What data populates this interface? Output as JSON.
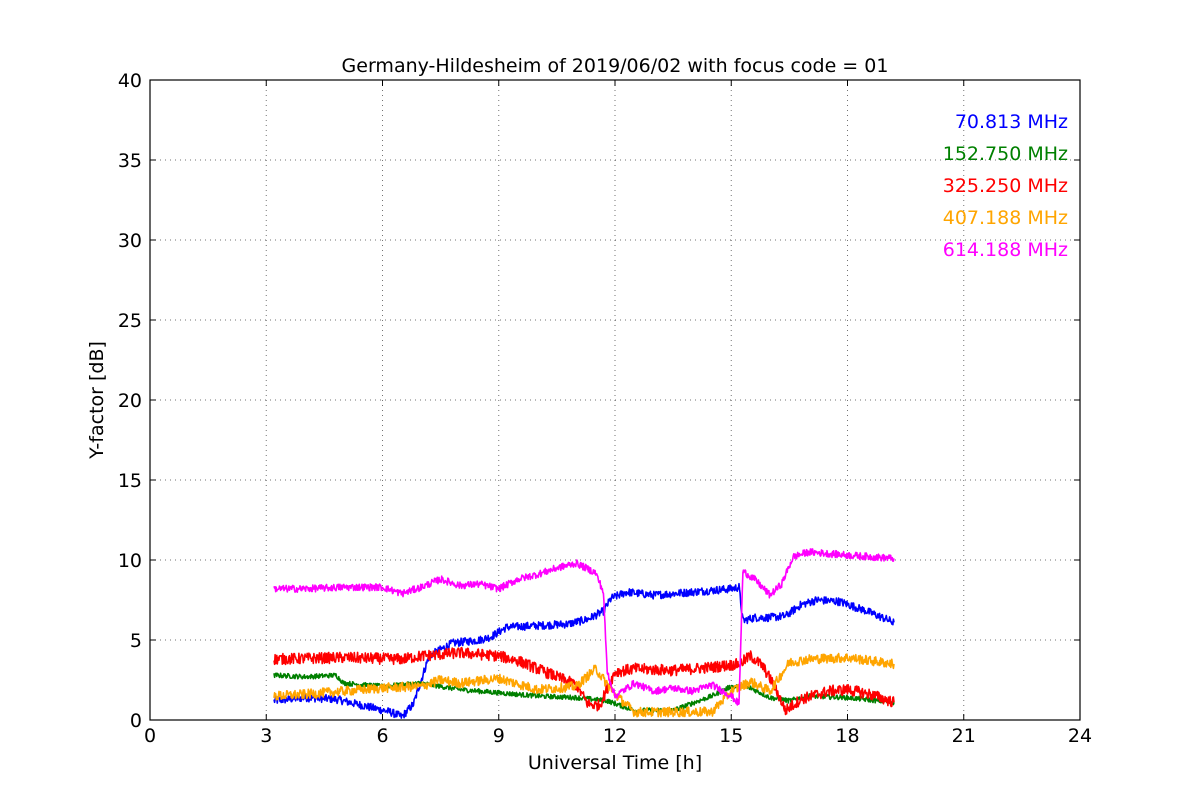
{
  "chart_data": {
    "type": "line",
    "title": "Germany-Hildesheim of 2019/06/02 with focus code = 01",
    "xlabel": "Universal Time [h]",
    "ylabel": "Y-factor [dB]",
    "xlim": [
      0,
      24
    ],
    "ylim": [
      0,
      40
    ],
    "xticks": [
      0,
      3,
      6,
      9,
      12,
      15,
      18,
      21,
      24
    ],
    "yticks": [
      0,
      5,
      10,
      15,
      20,
      25,
      30,
      35,
      40
    ],
    "grid": true,
    "legend_position": "top-right",
    "series": [
      {
        "name": "70.813 MHz",
        "color": "#0000ff",
        "noise": 0.25,
        "x": [
          3.2,
          4.0,
          4.8,
          5.5,
          6.2,
          6.5,
          6.8,
          7.0,
          7.2,
          7.8,
          8.5,
          8.8,
          9.2,
          10.0,
          10.8,
          11.3,
          11.7,
          11.9,
          12.3,
          13.0,
          14.0,
          15.0,
          15.2,
          15.3,
          15.6,
          16.0,
          16.4,
          16.8,
          17.2,
          17.8,
          18.5,
          19.2
        ],
        "y": [
          1.2,
          1.4,
          1.3,
          0.9,
          0.5,
          0.2,
          1.0,
          2.5,
          4.0,
          4.8,
          5.0,
          5.2,
          5.8,
          5.9,
          6.0,
          6.3,
          6.8,
          7.6,
          8.0,
          7.8,
          8.0,
          8.2,
          8.3,
          6.2,
          6.4,
          6.4,
          6.5,
          7.2,
          7.5,
          7.4,
          6.8,
          6.1
        ]
      },
      {
        "name": "152.750 MHz",
        "color": "#008000",
        "noise": 0.15,
        "x": [
          3.2,
          4.0,
          4.8,
          5.0,
          6.0,
          7.0,
          8.0,
          9.0,
          10.0,
          11.0,
          11.8,
          12.5,
          13.5,
          14.5,
          15.0,
          15.5,
          16.0,
          16.5,
          17.0,
          18.0,
          19.2
        ],
        "y": [
          2.8,
          2.7,
          2.8,
          2.3,
          2.1,
          2.3,
          1.9,
          1.7,
          1.5,
          1.4,
          1.2,
          0.6,
          0.6,
          1.5,
          2.1,
          2.0,
          1.4,
          1.2,
          1.5,
          1.4,
          1.1
        ]
      },
      {
        "name": "325.250 MHz",
        "color": "#ff0000",
        "noise": 0.35,
        "x": [
          3.2,
          5.0,
          6.5,
          7.0,
          8.0,
          9.0,
          9.5,
          10.0,
          10.5,
          11.0,
          11.3,
          11.6,
          12.0,
          12.5,
          13.5,
          14.5,
          15.2,
          15.5,
          15.8,
          16.1,
          16.4,
          16.8,
          17.5,
          18.0,
          18.6,
          19.2
        ],
        "y": [
          3.8,
          3.9,
          3.8,
          4.0,
          4.2,
          4.0,
          3.7,
          3.2,
          2.7,
          2.2,
          1.0,
          0.9,
          3.0,
          3.2,
          3.1,
          3.3,
          3.5,
          4.0,
          3.4,
          2.2,
          0.6,
          1.3,
          1.8,
          1.9,
          1.6,
          1.1
        ]
      },
      {
        "name": "407.188 MHz",
        "color": "#ffa500",
        "noise": 0.3,
        "x": [
          3.2,
          4.0,
          5.0,
          6.0,
          7.0,
          7.5,
          8.0,
          9.0,
          10.0,
          11.0,
          11.5,
          12.0,
          12.5,
          13.5,
          14.5,
          15.0,
          15.5,
          16.0,
          16.5,
          17.0,
          18.0,
          19.2
        ],
        "y": [
          1.5,
          1.6,
          1.8,
          2.0,
          2.1,
          2.5,
          2.3,
          2.6,
          1.9,
          2.1,
          3.2,
          1.6,
          0.5,
          0.5,
          0.5,
          1.8,
          2.4,
          1.8,
          3.6,
          3.8,
          3.9,
          3.5
        ]
      },
      {
        "name": "614.188 MHz",
        "color": "#ff00ff",
        "noise": 0.22,
        "x": [
          3.2,
          4.0,
          5.0,
          6.0,
          6.5,
          7.0,
          7.5,
          8.0,
          8.5,
          9.0,
          9.5,
          10.0,
          10.5,
          11.0,
          11.5,
          11.7,
          11.8,
          12.0,
          12.5,
          13.0,
          13.5,
          14.0,
          14.5,
          15.0,
          15.2,
          15.3,
          15.6,
          16.0,
          16.3,
          16.6,
          17.0,
          18.0,
          19.2
        ],
        "y": [
          8.2,
          8.2,
          8.3,
          8.3,
          7.9,
          8.3,
          8.8,
          8.4,
          8.5,
          8.2,
          8.8,
          9.1,
          9.5,
          9.8,
          9.2,
          8.0,
          3.0,
          1.5,
          2.3,
          1.8,
          2.0,
          1.8,
          2.2,
          1.5,
          1.0,
          9.3,
          8.8,
          7.8,
          8.5,
          10.2,
          10.5,
          10.3,
          10.1
        ]
      }
    ]
  }
}
